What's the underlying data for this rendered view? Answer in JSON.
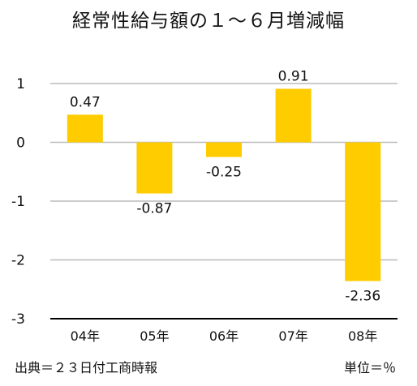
{
  "chart_data": {
    "type": "bar",
    "title": "経常性給与額の１～６月増減幅",
    "categories": [
      "04年",
      "05年",
      "06年",
      "07年",
      "08年"
    ],
    "values": [
      0.47,
      -0.87,
      -0.25,
      0.91,
      -2.36
    ],
    "data_labels": [
      "0.47",
      "-0.87",
      "-0.25",
      "0.91",
      "-2.36"
    ],
    "ylim": [
      -3,
      1
    ],
    "yticks": [
      1,
      0,
      -1,
      -2,
      -3
    ],
    "ytick_labels": [
      "1",
      "0",
      "-1",
      "-2",
      "-3"
    ],
    "grid": true,
    "legend": "none",
    "colors": {
      "bar": "#FFCC00",
      "grid": "#BBBBBB",
      "axis": "#000000",
      "text": "#111111"
    },
    "source_note": "出典＝２３日付工商時報",
    "unit_note": "単位＝％"
  }
}
